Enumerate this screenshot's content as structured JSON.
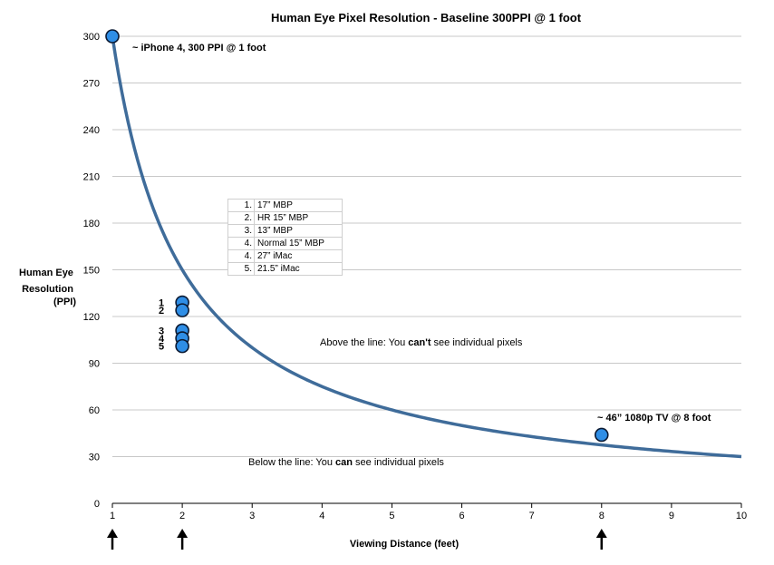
{
  "chart_data": {
    "type": "line",
    "title": "Human Eye Pixel Resolution - Baseline 300PPI @ 1 foot",
    "xlabel": "Viewing Distance (feet)",
    "ylabel": [
      "Human Eye",
      "Resolution",
      "(PPI)"
    ],
    "xlim": [
      1,
      10
    ],
    "ylim": [
      0,
      300
    ],
    "xticks": [
      1,
      2,
      3,
      4,
      5,
      6,
      7,
      8,
      9,
      10
    ],
    "yticks": [
      0,
      30,
      60,
      90,
      120,
      150,
      180,
      210,
      240,
      270,
      300
    ],
    "grid": "horizontal",
    "curve": {
      "formula": "300 / distance",
      "color": "#3f6c9a"
    },
    "points": [
      {
        "x": 1,
        "y": 300,
        "label": "~ iPhone 4, 300 PPI @ 1 foot"
      },
      {
        "x": 2,
        "y": 129,
        "label": "1"
      },
      {
        "x": 2,
        "y": 124,
        "label": "2"
      },
      {
        "x": 2,
        "y": 111,
        "label": "3"
      },
      {
        "x": 2,
        "y": 106,
        "label": "4"
      },
      {
        "x": 2,
        "y": 101,
        "label": "5"
      },
      {
        "x": 8,
        "y": 44,
        "label": "~ 46” 1080p TV @ 8 foot"
      }
    ],
    "point_color": "#2f8ee6",
    "arrows_at_x": [
      1,
      2,
      8
    ],
    "legend": [
      {
        "num": "1.",
        "name": "17” MBP"
      },
      {
        "num": "2.",
        "name": "HR 15” MBP"
      },
      {
        "num": "3.",
        "name": "13” MBP"
      },
      {
        "num": "4.",
        "name": "Normal 15” MBP"
      },
      {
        "num": "4.",
        "name": "27” iMac"
      },
      {
        "num": "5.",
        "name": "21.5” iMac"
      }
    ],
    "annotations": {
      "above": {
        "prefix": "Above the line: You ",
        "bold": "can't",
        "suffix": " see individual pixels"
      },
      "below": {
        "prefix": "Below the line: You ",
        "bold": "can",
        "suffix": " see individual pixels"
      }
    }
  }
}
